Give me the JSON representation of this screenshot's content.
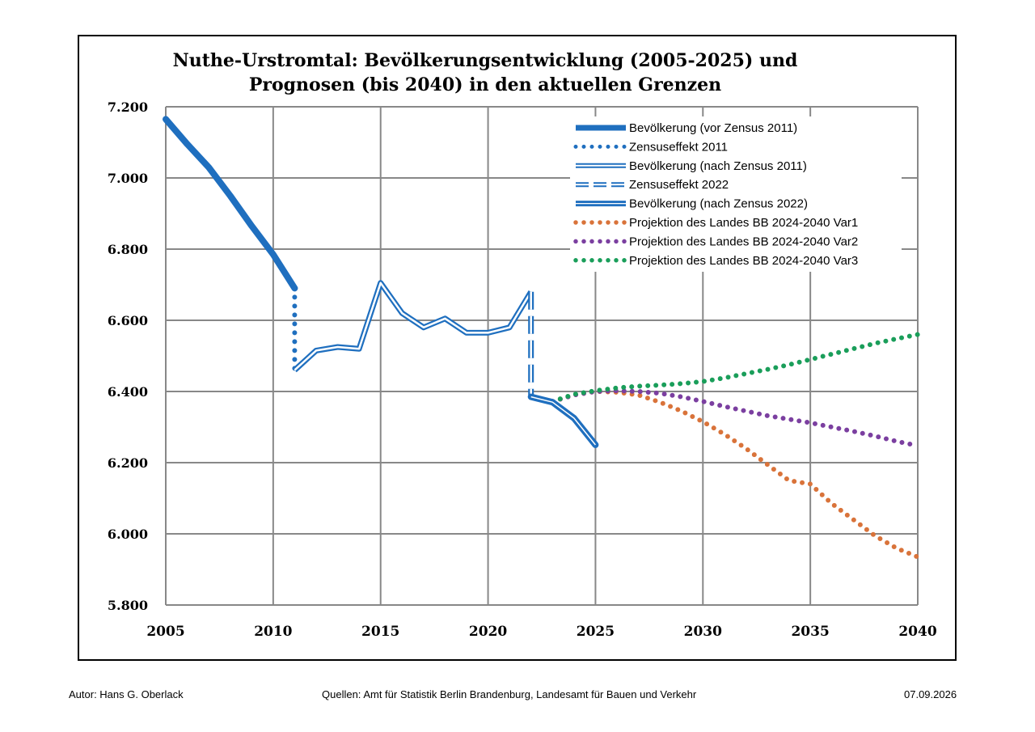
{
  "chart_data": {
    "type": "line",
    "title_line1": "Nuthe-Urstromtal:  Bevölkerungsentwicklung (2005-2025) und",
    "title_line2": "Prognosen (bis 2040) in den aktuellen Grenzen",
    "xlim": [
      2005,
      2040
    ],
    "ylim": [
      5800,
      7200
    ],
    "x_ticks": [
      2005,
      2010,
      2015,
      2020,
      2025,
      2030,
      2035,
      2040
    ],
    "x_tick_labels": [
      "2005",
      "2010",
      "2015",
      "2020",
      "2025",
      "2030",
      "2035",
      "2040"
    ],
    "y_ticks": [
      5800,
      6000,
      6200,
      6400,
      6600,
      6800,
      7000,
      7200
    ],
    "y_tick_labels": [
      "5.800",
      "6.000",
      "6.200",
      "6.400",
      "6.600",
      "6.800",
      "7.000",
      "7.200"
    ],
    "grid": true,
    "legend_position": "top-right",
    "series": [
      {
        "name": "Bevölkerung  (vor Zensus 2011)",
        "style": "thick",
        "color": "#1f6fbf",
        "points": [
          [
            2005,
            7165
          ],
          [
            2006,
            7095
          ],
          [
            2007,
            7030
          ],
          [
            2008,
            6950
          ],
          [
            2009,
            6865
          ],
          [
            2010,
            6785
          ],
          [
            2011,
            6690
          ]
        ]
      },
      {
        "name": "Zensuseffekt 2011",
        "style": "dotted",
        "color": "#1f6fbf",
        "points": [
          [
            2011,
            6690
          ],
          [
            2011,
            6460
          ]
        ]
      },
      {
        "name": "Bevölkerung  (nach Zensus 2011)",
        "style": "double",
        "color": "#1f6fbf",
        "points": [
          [
            2011,
            6460
          ],
          [
            2012,
            6515
          ],
          [
            2013,
            6525
          ],
          [
            2014,
            6520
          ],
          [
            2015,
            6705
          ],
          [
            2016,
            6620
          ],
          [
            2017,
            6580
          ],
          [
            2018,
            6605
          ],
          [
            2019,
            6565
          ],
          [
            2020,
            6565
          ],
          [
            2021,
            6580
          ],
          [
            2022,
            6680
          ]
        ]
      },
      {
        "name": "Zensuseffekt 2022",
        "style": "dashed-double",
        "color": "#1f6fbf",
        "points": [
          [
            2022,
            6680
          ],
          [
            2022,
            6385
          ]
        ]
      },
      {
        "name": "Bevölkerung  (nach Zensus 2022)",
        "style": "thick-double",
        "color": "#1f6fbf",
        "points": [
          [
            2022,
            6385
          ],
          [
            2023,
            6370
          ],
          [
            2024,
            6325
          ],
          [
            2025,
            6250
          ]
        ]
      },
      {
        "name": "Projektion des Landes BB 2024-2040 Var1",
        "style": "dots",
        "color": "#d9733a",
        "points": [
          [
            2023,
            6372
          ],
          [
            2024,
            6390
          ],
          [
            2025,
            6400
          ],
          [
            2026,
            6398
          ],
          [
            2027,
            6390
          ],
          [
            2028,
            6370
          ],
          [
            2029,
            6345
          ],
          [
            2030,
            6315
          ],
          [
            2031,
            6280
          ],
          [
            2032,
            6240
          ],
          [
            2033,
            6195
          ],
          [
            2034,
            6150
          ],
          [
            2035,
            6140
          ],
          [
            2036,
            6085
          ],
          [
            2037,
            6040
          ],
          [
            2038,
            5995
          ],
          [
            2039,
            5960
          ],
          [
            2040,
            5935
          ]
        ]
      },
      {
        "name": "Projektion des Landes BB 2024-2040 Var2",
        "style": "dots",
        "color": "#7b3fa0",
        "points": [
          [
            2023,
            6372
          ],
          [
            2024,
            6390
          ],
          [
            2025,
            6400
          ],
          [
            2026,
            6402
          ],
          [
            2027,
            6400
          ],
          [
            2028,
            6395
          ],
          [
            2029,
            6385
          ],
          [
            2030,
            6372
          ],
          [
            2031,
            6358
          ],
          [
            2032,
            6345
          ],
          [
            2033,
            6332
          ],
          [
            2034,
            6322
          ],
          [
            2035,
            6312
          ],
          [
            2036,
            6300
          ],
          [
            2037,
            6288
          ],
          [
            2038,
            6275
          ],
          [
            2039,
            6260
          ],
          [
            2040,
            6248
          ]
        ]
      },
      {
        "name": "Projektion des Landes BB 2024-2040 Var3",
        "style": "dots",
        "color": "#1a9e5a",
        "points": [
          [
            2023,
            6372
          ],
          [
            2024,
            6392
          ],
          [
            2025,
            6402
          ],
          [
            2026,
            6410
          ],
          [
            2027,
            6415
          ],
          [
            2028,
            6418
          ],
          [
            2029,
            6422
          ],
          [
            2030,
            6428
          ],
          [
            2031,
            6438
          ],
          [
            2032,
            6450
          ],
          [
            2033,
            6462
          ],
          [
            2034,
            6475
          ],
          [
            2035,
            6490
          ],
          [
            2036,
            6505
          ],
          [
            2037,
            6520
          ],
          [
            2038,
            6535
          ],
          [
            2039,
            6548
          ],
          [
            2040,
            6560
          ]
        ]
      }
    ]
  },
  "footer": {
    "author": "Autor: Hans G. Oberlack",
    "sources": "Quellen: Amt für Statistik Berlin Brandenburg, Landesamt für Bauen und Verkehr",
    "date": "07.09.2026"
  }
}
